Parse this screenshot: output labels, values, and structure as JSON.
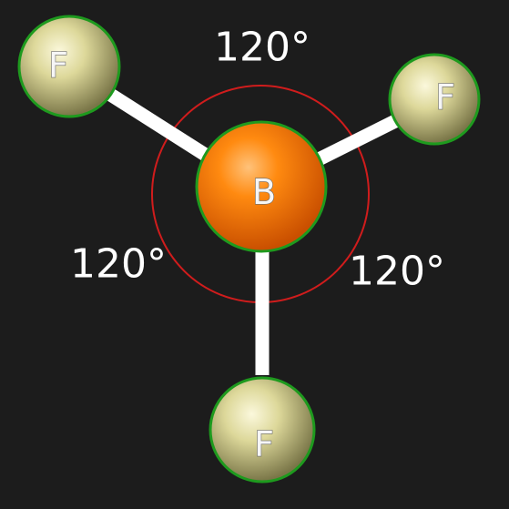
{
  "molecule": {
    "central_atom": {
      "symbol": "B",
      "color": "#ff7f00"
    },
    "ligand_atoms": [
      {
        "symbol": "F",
        "color": "#ddd89a"
      },
      {
        "symbol": "F",
        "color": "#ddd89a"
      },
      {
        "symbol": "F",
        "color": "#ddd89a"
      }
    ],
    "bond_color": "#ffffff",
    "outline_color": "#1e9a1e",
    "angle_arc_color": "#d01c1c"
  },
  "angles": [
    {
      "label": "120°"
    },
    {
      "label": "120°"
    },
    {
      "label": "120°"
    }
  ]
}
